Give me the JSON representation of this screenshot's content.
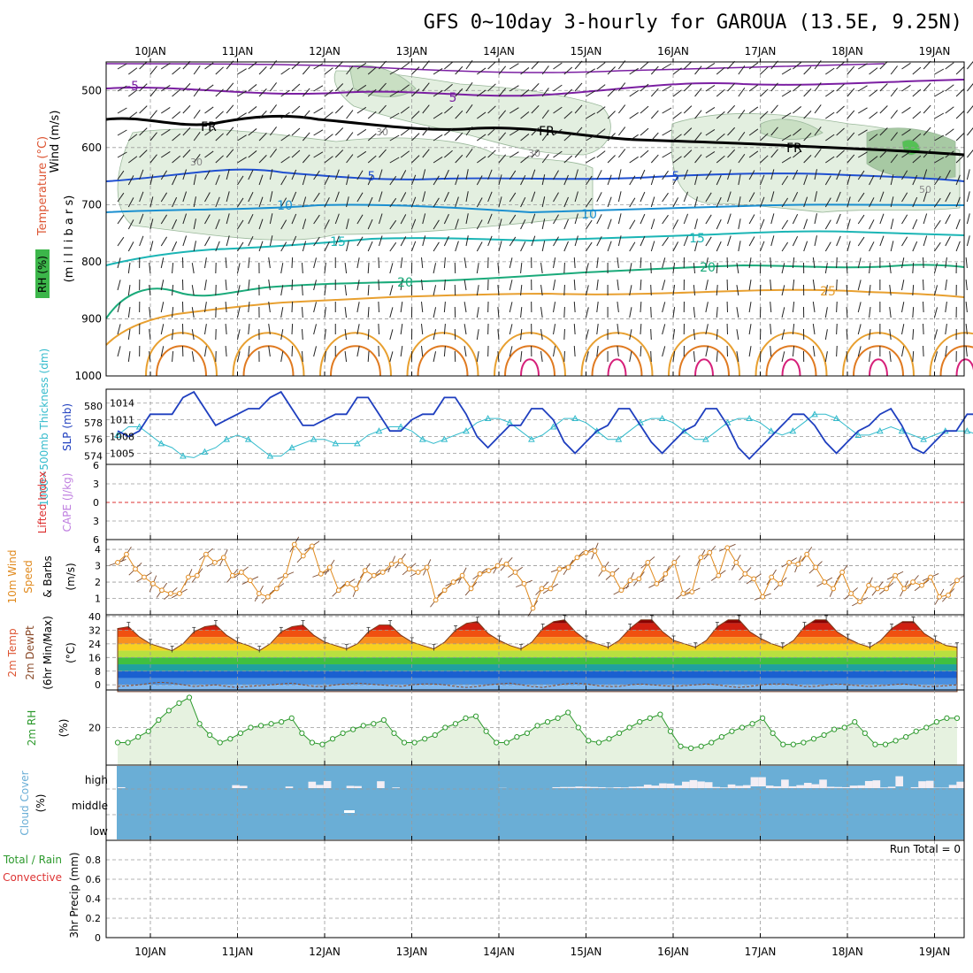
{
  "title": "GFS 0~10day 3-hourly for GAROUA (13.5E, 9.25N)",
  "dates": [
    "10JAN",
    "11JAN",
    "12JAN",
    "13JAN",
    "14JAN",
    "15JAN",
    "16JAN",
    "17JAN",
    "18JAN",
    "19JAN"
  ],
  "colors": {
    "frame": "#000000",
    "grid": "#999999",
    "slp": "#1f3fbf",
    "thickness": "#33bbcc",
    "wind_speed": "#e08a1e",
    "rh": "#2e9a2e",
    "cloud": "#6aaed6",
    "lifted": "#dd3333",
    "cape": "#c080e0"
  },
  "panels": {
    "upper": {
      "label_wind": "Wind (m/s)",
      "label_temp": "Temperature (°C)",
      "label_rh": "RH (%)",
      "label_mb": "(m i l l i b a r s)",
      "levels": [
        "500",
        "600",
        "700",
        "800",
        "900",
        "1000"
      ],
      "contour_labels": [
        "-5",
        "5",
        "FR",
        "FR",
        "FR",
        "5",
        "5",
        "10",
        "10",
        "15",
        "15",
        "20",
        "20",
        "25",
        "30",
        "30",
        "30",
        "50"
      ]
    },
    "pressure": {
      "label_thick": "1000~500mb Thickness (dm)",
      "label_slp": "SLP (mb)",
      "left_ticks": [
        "580",
        "578",
        "576",
        "574"
      ],
      "right_ticks": [
        "1014",
        "1011",
        "1008",
        "1005"
      ]
    },
    "instability": {
      "label_li": "Lifted Index",
      "label_cape": "CAPE (J/kg)",
      "ticks": [
        "6",
        "3",
        "0",
        "3",
        "6"
      ]
    },
    "wind10": {
      "label_a": "10m Wind",
      "label_b": "Speed",
      "label_c": "& Barbs",
      "label_unit": "(m/s)",
      "ticks": [
        "4",
        "3",
        "2",
        "1"
      ]
    },
    "temp2m": {
      "label_a": "2m Temp",
      "label_b": "2m DewPt",
      "label_c": "(6hr Min/Max)",
      "label_unit": "(°C)",
      "ticks": [
        "40",
        "32",
        "24",
        "16",
        "8",
        "0"
      ]
    },
    "rh2m": {
      "label_a": "2m RH",
      "label_unit": "(%)",
      "ticks": [
        "20"
      ]
    },
    "cloud": {
      "label_a": "Cloud Cover",
      "label_unit": "(%)",
      "levels": [
        "high",
        "middle",
        "low"
      ]
    },
    "precip": {
      "label_a": "Total / Rain",
      "label_b": "Convective",
      "label_c": "3hr Precip (mm)",
      "ticks": [
        "0.8",
        "0.6",
        "0.4",
        "0.2",
        "0"
      ],
      "run_total": "Run Total = 0"
    }
  },
  "chart_data": [
    {
      "type": "line",
      "title": "SLP (mb)",
      "x_start": "09JAN 12Z",
      "x_step_hours": 3,
      "ylim": [
        1003,
        1016
      ],
      "series": [
        {
          "name": "SLP (mb)",
          "values": [
            1009,
            1008,
            1009,
            1012,
            1012,
            1012,
            1015,
            1016,
            1013,
            1010,
            1011,
            1012,
            1013,
            1013,
            1015,
            1016,
            1013,
            1010,
            1010,
            1011,
            1012,
            1012,
            1015,
            1015,
            1012,
            1009,
            1009,
            1011,
            1012,
            1012,
            1015,
            1015,
            1012,
            1008,
            1006,
            1008,
            1010,
            1010,
            1013,
            1013,
            1011,
            1007,
            1005,
            1007,
            1009,
            1010,
            1013,
            1013,
            1010,
            1007,
            1005,
            1007,
            1009,
            1010,
            1013,
            1013,
            1010,
            1006,
            1004,
            1006,
            1008,
            1010,
            1012,
            1012,
            1010,
            1007,
            1005,
            1007,
            1009,
            1010,
            1012,
            1013,
            1010,
            1006,
            1005,
            1007,
            1009,
            1009,
            1012,
            1012,
            1009,
            1007,
            1008
          ]
        }
      ]
    },
    {
      "type": "line",
      "title": "1000~500mb Thickness (dm)",
      "x_start": "09JAN 12Z",
      "x_step_hours": 3,
      "ylim": [
        573,
        582
      ],
      "series": [
        {
          "name": "1000~500mb Thickness (dm)",
          "values": [
            576.5,
            577.5,
            577.5,
            576.5,
            575.5,
            575,
            574,
            573.8,
            574.5,
            575,
            576,
            576.5,
            576,
            575,
            574,
            574,
            575,
            575.5,
            576,
            576,
            575.5,
            575.5,
            575.5,
            576.5,
            577,
            577.5,
            577.5,
            577,
            576,
            575.5,
            576,
            576.5,
            577,
            578,
            578.5,
            578.5,
            578,
            577,
            576,
            576.5,
            577.5,
            578.5,
            578.5,
            578,
            577,
            576,
            576,
            577,
            578,
            578.5,
            578.5,
            578,
            577,
            576,
            576,
            577,
            578,
            578.5,
            578.5,
            578,
            577,
            576.5,
            577,
            578,
            579,
            579,
            578.5,
            577.5,
            576.5,
            576.5,
            577,
            577.5,
            577,
            576.5,
            576,
            576.5,
            577,
            577,
            577,
            576.5,
            576,
            576.5,
            576.5
          ]
        }
      ]
    },
    {
      "type": "line",
      "title": "10m Wind Speed (m/s)",
      "x_start": "09JAN 12Z",
      "x_step_hours": 3,
      "ylim": [
        0,
        4.5
      ],
      "series": [
        {
          "name": "10m Wind Speed",
          "values": [
            3.2,
            3.7,
            2.8,
            2.3,
            1.9,
            1.5,
            1.3,
            1.3,
            2.3,
            2.4,
            3.7,
            3.2,
            3.5,
            2.4,
            2.6,
            2.1,
            1.3,
            1.1,
            1.6,
            2.4,
            4.3,
            3.6,
            4.2,
            2.5,
            2.9,
            1.5,
            1.9,
            1.6,
            2.7,
            2.4,
            2.6,
            3.1,
            3.3,
            2.8,
            2.6,
            2.9,
            0.9,
            1.5,
            2.0,
            2.4,
            1.6,
            2.5,
            2.7,
            3.0,
            3.1,
            2.6,
            1.9,
            0.4,
            1.6,
            1.6,
            2.8,
            2.9,
            3.5,
            3.8,
            3.9,
            2.8,
            2.5,
            1.5,
            2.1,
            2.2,
            3.2,
            1.9,
            2.5,
            3.2,
            1.3,
            1.4,
            3.5,
            3.8,
            2.4,
            4.1,
            3.2,
            2.5,
            2.2,
            1.1,
            2.3,
            1.9,
            3.2,
            3.1,
            3.7,
            2.9,
            2.0,
            1.6,
            2.6,
            1.3,
            0.8,
            1.8,
            1.6,
            1.6,
            2.4,
            1.6,
            2.0,
            1.8,
            2.3,
            1.1,
            1.2,
            2.1
          ]
        }
      ]
    },
    {
      "type": "area",
      "title": "2m Temp (°C)",
      "x_start": "09JAN 12Z",
      "x_step_hours": 3,
      "ylim": [
        -2,
        40
      ],
      "series": [
        {
          "name": "2m Temp",
          "values": [
            33,
            34,
            28,
            24,
            22,
            20,
            24,
            31,
            34,
            35,
            29,
            25,
            23,
            20,
            24,
            31,
            34,
            35,
            29,
            25,
            23,
            21,
            24,
            31,
            35,
            35,
            29,
            25,
            23,
            21,
            25,
            32,
            36,
            37,
            30,
            26,
            23,
            21,
            25,
            33,
            37,
            38,
            31,
            26,
            24,
            22,
            26,
            33,
            38,
            38,
            31,
            26,
            24,
            22,
            26,
            34,
            38,
            38,
            31,
            27,
            24,
            22,
            26,
            34,
            38,
            38,
            31,
            27,
            24,
            22,
            26,
            33,
            37,
            37,
            30,
            26,
            23,
            22
          ]
        },
        {
          "name": "2m DewPt",
          "values": [
            -1,
            -0.5,
            0,
            1,
            1.5,
            1,
            0,
            -1,
            -0.5,
            0,
            -1,
            -1.5,
            -1,
            -0.5,
            0,
            0.5,
            1,
            0,
            -1,
            -1,
            0,
            0.5,
            1,
            0.5,
            0,
            -0.5,
            -1,
            0,
            0.5,
            0.5,
            0,
            -1,
            -1.5,
            -1,
            0,
            0.5,
            1,
            0,
            -1,
            -1.5,
            -0.5,
            0.5,
            1,
            0.5,
            -0.5,
            -1,
            -1,
            0,
            0.5,
            0,
            -0.5,
            -1,
            -0.5,
            0,
            0.5,
            0,
            -1,
            -1.5,
            -1,
            0,
            0.5,
            0.5,
            0,
            -1,
            -1,
            0,
            0.5,
            0,
            -0.5,
            -1,
            -0.5,
            0,
            0.5,
            0,
            -1,
            -1,
            -0.5,
            0
          ]
        }
      ]
    },
    {
      "type": "area",
      "title": "2m RH (%)",
      "x_start": "09JAN 12Z",
      "x_step_hours": 3,
      "ylim": [
        0,
        40
      ],
      "series": [
        {
          "name": "2m RH",
          "values": [
            12,
            12,
            15,
            18,
            24,
            29,
            33,
            36,
            22,
            16,
            12,
            14,
            17,
            20,
            21,
            22,
            23,
            25,
            17,
            12,
            11,
            14,
            17,
            19,
            21,
            22,
            24,
            17,
            12,
            12,
            14,
            16,
            20,
            22,
            25,
            26,
            18,
            12,
            12,
            15,
            17,
            21,
            23,
            25,
            28,
            20,
            13,
            12,
            14,
            17,
            20,
            23,
            25,
            27,
            18,
            10,
            9,
            10,
            12,
            15,
            18,
            20,
            22,
            25,
            17,
            11,
            11,
            12,
            14,
            16,
            19,
            20,
            23,
            17,
            11,
            11,
            13,
            15,
            18,
            20,
            23,
            25,
            25
          ]
        }
      ]
    },
    {
      "type": "bar",
      "title": "Cloud Cover (%) high",
      "x_start": "09JAN 12Z",
      "x_step_hours": 3,
      "ylim": [
        0,
        100
      ],
      "series": [
        {
          "name": "high",
          "values": [
            4,
            0,
            0,
            0,
            0,
            0,
            0,
            0,
            0,
            0,
            0,
            0,
            0,
            0,
            0,
            13,
            10,
            0,
            0,
            0,
            0,
            0,
            7,
            0,
            0,
            28,
            14,
            31,
            0,
            0,
            10,
            9,
            0,
            0,
            30,
            0,
            3,
            0,
            0,
            0,
            0,
            0,
            0,
            0,
            0,
            0,
            0,
            0,
            0,
            0,
            1,
            0,
            0,
            0,
            0,
            0,
            0,
            4,
            5,
            5,
            7,
            6,
            5,
            4,
            2,
            4,
            3,
            6,
            7,
            15,
            11,
            21,
            20,
            12,
            28,
            35,
            29,
            26,
            5,
            3,
            16,
            10,
            13,
            40,
            40,
            11,
            8,
            37,
            8,
            13,
            23,
            17,
            37,
            6,
            5,
            4,
            11,
            12,
            31,
            34,
            3,
            6,
            44,
            0,
            4,
            30,
            32,
            2,
            2,
            14,
            28
          ]
        }
      ]
    },
    {
      "type": "bar",
      "title": "3hr Precip (mm)",
      "ylim": [
        0,
        1
      ],
      "series": [
        {
          "name": "Total / Rain",
          "values": []
        }
      ]
    }
  ]
}
